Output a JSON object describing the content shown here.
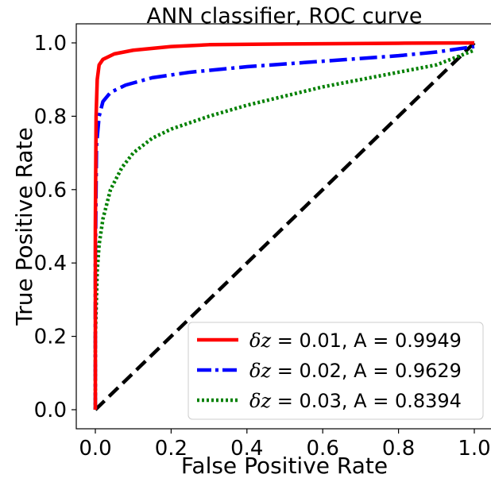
{
  "chart_data": {
    "type": "line",
    "title": "ANN classifier, ROC curve",
    "xlabel": "False Positive Rate",
    "ylabel": "True Positive Rate",
    "xlim": [
      -0.05,
      1.05
    ],
    "ylim": [
      -0.05,
      1.05
    ],
    "xticks": [
      0.0,
      0.2,
      0.4,
      0.6,
      0.8,
      1.0
    ],
    "yticks": [
      0.0,
      0.2,
      0.4,
      0.6,
      0.8,
      1.0
    ],
    "xtick_labels": [
      "0.0",
      "0.2",
      "0.4",
      "0.6",
      "0.8",
      "1.0"
    ],
    "ytick_labels": [
      "0.0",
      "0.2",
      "0.4",
      "0.6",
      "0.8",
      "1.0"
    ],
    "grid": false,
    "legend_position": "lower-right",
    "series": [
      {
        "legend_math": "δz",
        "legend_text": " = 0.01,  A = 0.9949",
        "color": "#ff0000",
        "style": "solid",
        "points": [
          [
            0,
            0
          ],
          [
            0,
            0.5
          ],
          [
            0.002,
            0.8
          ],
          [
            0.005,
            0.9
          ],
          [
            0.01,
            0.94
          ],
          [
            0.02,
            0.955
          ],
          [
            0.05,
            0.97
          ],
          [
            0.1,
            0.98
          ],
          [
            0.2,
            0.99
          ],
          [
            0.3,
            0.995
          ],
          [
            0.5,
            0.997
          ],
          [
            0.8,
            0.999
          ],
          [
            1,
            1
          ]
        ]
      },
      {
        "legend_math": "δz",
        "legend_text": " = 0.02,  A = 0.9629",
        "color": "#0000ff",
        "style": "dashdot",
        "points": [
          [
            0,
            0
          ],
          [
            0,
            0.4
          ],
          [
            0.003,
            0.72
          ],
          [
            0.01,
            0.8
          ],
          [
            0.02,
            0.84
          ],
          [
            0.04,
            0.865
          ],
          [
            0.08,
            0.885
          ],
          [
            0.15,
            0.905
          ],
          [
            0.25,
            0.92
          ],
          [
            0.4,
            0.935
          ],
          [
            0.6,
            0.95
          ],
          [
            0.8,
            0.965
          ],
          [
            0.9,
            0.975
          ],
          [
            1,
            0.99
          ]
        ]
      },
      {
        "legend_math": "δz",
        "legend_text": " = 0.03,  A = 0.8394",
        "color": "#008000",
        "style": "dotted",
        "points": [
          [
            0,
            0
          ],
          [
            0,
            0.2
          ],
          [
            0.005,
            0.38
          ],
          [
            0.01,
            0.45
          ],
          [
            0.02,
            0.52
          ],
          [
            0.04,
            0.6
          ],
          [
            0.07,
            0.66
          ],
          [
            0.1,
            0.7
          ],
          [
            0.15,
            0.74
          ],
          [
            0.2,
            0.765
          ],
          [
            0.3,
            0.8
          ],
          [
            0.4,
            0.83
          ],
          [
            0.5,
            0.855
          ],
          [
            0.6,
            0.88
          ],
          [
            0.7,
            0.9
          ],
          [
            0.8,
            0.92
          ],
          [
            0.9,
            0.94
          ],
          [
            1,
            0.98
          ]
        ]
      },
      {
        "legend_math": "",
        "legend_text": "",
        "color": "#000000",
        "style": "dashed",
        "points": [
          [
            0,
            0
          ],
          [
            1,
            1
          ]
        ]
      }
    ]
  }
}
